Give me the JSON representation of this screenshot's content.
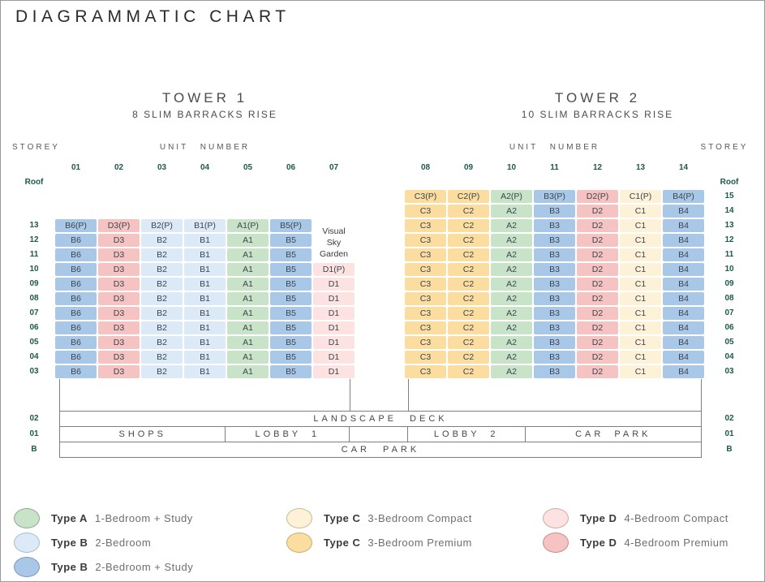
{
  "title": "DIAGRAMMATIC CHART",
  "colors": {
    "type_a": "#c9e3c8",
    "type_b": "#dce9f6",
    "type_b_study": "#a9c8e7",
    "type_c_compact": "#fdf2d8",
    "type_c_premium": "#fbdda0",
    "type_d_compact": "#fce3e1",
    "type_d_premium": "#f5c3c1",
    "type_a_border": "#8fa98e",
    "type_b_border": "#a3bcd8",
    "type_b_study_border": "#7798bd",
    "type_c_compact_border": "#c9b98f",
    "type_c_premium_border": "#cbab6e",
    "type_d_compact_border": "#d3a8a4",
    "type_d_premium_border": "#c68b8a",
    "storey_text": "#1b5a4a",
    "cell_text": "#3e4450",
    "line": "#7f7f7f"
  },
  "towers": [
    {
      "name": "TOWER 1",
      "address": "8 SLIM BARRACKS RISE",
      "unit_number_label": "UNIT NUMBER",
      "storey_label": "STOREY",
      "roof_label": "Roof",
      "storeys": [
        "13",
        "12",
        "11",
        "10",
        "09",
        "08",
        "07",
        "06",
        "05",
        "04",
        "03"
      ],
      "sky_garden": {
        "label": "Visual Sky Garden"
      },
      "units": [
        {
          "number": "01",
          "type": "type_b_study",
          "cells": [
            "B6(P)",
            "B6",
            "B6",
            "B6",
            "B6",
            "B6",
            "B6",
            "B6",
            "B6",
            "B6",
            "B6"
          ]
        },
        {
          "number": "02",
          "type": "type_d_premium",
          "cells": [
            "D3(P)",
            "D3",
            "D3",
            "D3",
            "D3",
            "D3",
            "D3",
            "D3",
            "D3",
            "D3",
            "D3"
          ]
        },
        {
          "number": "03",
          "type": "type_b",
          "cells": [
            "B2(P)",
            "B2",
            "B2",
            "B2",
            "B2",
            "B2",
            "B2",
            "B2",
            "B2",
            "B2",
            "B2"
          ]
        },
        {
          "number": "04",
          "type": "type_b",
          "cells": [
            "B1(P)",
            "B1",
            "B1",
            "B1",
            "B1",
            "B1",
            "B1",
            "B1",
            "B1",
            "B1",
            "B1"
          ]
        },
        {
          "number": "05",
          "type": "type_a",
          "cells": [
            "A1(P)",
            "A1",
            "A1",
            "A1",
            "A1",
            "A1",
            "A1",
            "A1",
            "A1",
            "A1",
            "A1"
          ]
        },
        {
          "number": "06",
          "type": "type_b_study",
          "cells": [
            "B5(P)",
            "B5",
            "B5",
            "B5",
            "B5",
            "B5",
            "B5",
            "B5",
            "B5",
            "B5",
            "B5"
          ]
        },
        {
          "number": "07",
          "type": "type_d_compact",
          "cells": [
            null,
            null,
            null,
            "D1(P)",
            "D1",
            "D1",
            "D1",
            "D1",
            "D1",
            "D1",
            "D1"
          ]
        }
      ]
    },
    {
      "name": "TOWER 2",
      "address": "10 SLIM BARRACKS RISE",
      "unit_number_label": "UNIT NUMBER",
      "storey_label": "STOREY",
      "roof_label": "Roof",
      "storeys": [
        "15",
        "14",
        "13",
        "12",
        "11",
        "10",
        "09",
        "08",
        "07",
        "06",
        "05",
        "04",
        "03"
      ],
      "units": [
        {
          "number": "08",
          "type": "type_c_premium",
          "cells": [
            "C3(P)",
            "C3",
            "C3",
            "C3",
            "C3",
            "C3",
            "C3",
            "C3",
            "C3",
            "C3",
            "C3",
            "C3",
            "C3"
          ]
        },
        {
          "number": "09",
          "type": "type_c_premium",
          "cells": [
            "C2(P)",
            "C2",
            "C2",
            "C2",
            "C2",
            "C2",
            "C2",
            "C2",
            "C2",
            "C2",
            "C2",
            "C2",
            "C2"
          ]
        },
        {
          "number": "10",
          "type": "type_a",
          "cells": [
            "A2(P)",
            "A2",
            "A2",
            "A2",
            "A2",
            "A2",
            "A2",
            "A2",
            "A2",
            "A2",
            "A2",
            "A2",
            "A2"
          ]
        },
        {
          "number": "11",
          "type": "type_b_study",
          "cells": [
            "B3(P)",
            "B3",
            "B3",
            "B3",
            "B3",
            "B3",
            "B3",
            "B3",
            "B3",
            "B3",
            "B3",
            "B3",
            "B3"
          ]
        },
        {
          "number": "12",
          "type": "type_d_premium",
          "cells": [
            "D2(P)",
            "D2",
            "D2",
            "D2",
            "D2",
            "D2",
            "D2",
            "D2",
            "D2",
            "D2",
            "D2",
            "D2",
            "D2"
          ]
        },
        {
          "number": "13",
          "type": "type_c_compact",
          "cells": [
            "C1(P)",
            "C1",
            "C1",
            "C1",
            "C1",
            "C1",
            "C1",
            "C1",
            "C1",
            "C1",
            "C1",
            "C1",
            "C1"
          ]
        },
        {
          "number": "14",
          "type": "type_b_study",
          "cells": [
            "B4(P)",
            "B4",
            "B4",
            "B4",
            "B4",
            "B4",
            "B4",
            "B4",
            "B4",
            "B4",
            "B4",
            "B4",
            "B4"
          ]
        }
      ]
    }
  ],
  "lower_levels": {
    "deck": {
      "storey": "02",
      "label": "LANDSCAPE DECK"
    },
    "level01": {
      "storey": "01",
      "cells": [
        {
          "label": "SHOPS"
        },
        {
          "label": "LOBBY 1"
        },
        {
          "label": ""
        },
        {
          "label": "LOBBY 2"
        },
        {
          "label": "CAR PARK"
        }
      ]
    },
    "basement": {
      "storey": "B",
      "label": "CAR PARK"
    }
  },
  "legend_columns": [
    [
      {
        "type_label": "Type A",
        "description": "1-Bedroom + Study",
        "color_key": "type_a"
      },
      {
        "type_label": "Type B",
        "description": "2-Bedroom",
        "color_key": "type_b"
      },
      {
        "type_label": "Type B",
        "description": "2-Bedroom + Study",
        "color_key": "type_b_study"
      }
    ],
    [
      {
        "type_label": "Type C",
        "description": "3-Bedroom Compact",
        "color_key": "type_c_compact"
      },
      {
        "type_label": "Type C",
        "description": "3-Bedroom Premium",
        "color_key": "type_c_premium"
      }
    ],
    [
      {
        "type_label": "Type D",
        "description": "4-Bedroom Compact",
        "color_key": "type_d_compact"
      },
      {
        "type_label": "Type D",
        "description": "4-Bedroom Premium",
        "color_key": "type_d_premium"
      }
    ]
  ]
}
